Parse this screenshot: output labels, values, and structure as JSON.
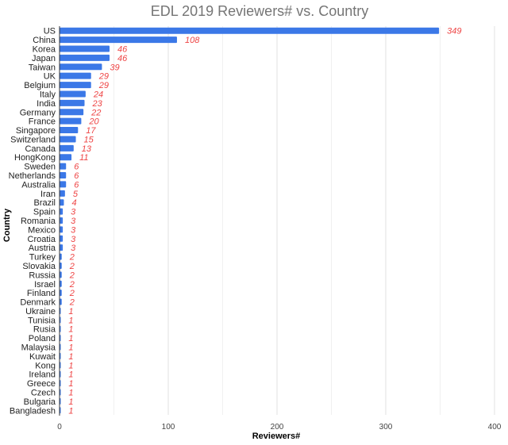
{
  "chart_data": {
    "type": "bar",
    "orientation": "horizontal",
    "title": "EDL 2019 Reviewers# vs. Country",
    "xlabel": "Reviewers#",
    "ylabel": "Country",
    "xlim": [
      0,
      400
    ],
    "xticks": [
      0,
      100,
      200,
      300,
      400
    ],
    "grid": true,
    "bar_color": "#3b78e7",
    "label_color": "#ee4444",
    "categories": [
      "US",
      "China",
      "Korea",
      "Japan",
      "Taiwan",
      "UK",
      "Belgium",
      "Italy",
      "India",
      "Germany",
      "France",
      "Singapore",
      "Switzerland",
      "Canada",
      "HongKong",
      "Sweden",
      "Netherlands",
      "Australia",
      "Iran",
      "Brazil",
      "Spain",
      "Romania",
      "Mexico",
      "Croatia",
      "Austria",
      "Turkey",
      "Slovakia",
      "Russia",
      "Israel",
      "Finland",
      "Denmark",
      "Ukraine",
      "Tunisia",
      "Rusia",
      "Poland",
      "Malaysia",
      "Kuwait",
      "Kong",
      "Ireland",
      "Greece",
      "Czech",
      "Bulgaria",
      "Bangladesh"
    ],
    "values": [
      349,
      108,
      46,
      46,
      39,
      29,
      29,
      24,
      23,
      22,
      20,
      17,
      15,
      13,
      11,
      6,
      6,
      6,
      5,
      4,
      3,
      3,
      3,
      3,
      3,
      2,
      2,
      2,
      2,
      2,
      2,
      1,
      1,
      1,
      1,
      1,
      1,
      1,
      1,
      1,
      1,
      1,
      1
    ]
  }
}
